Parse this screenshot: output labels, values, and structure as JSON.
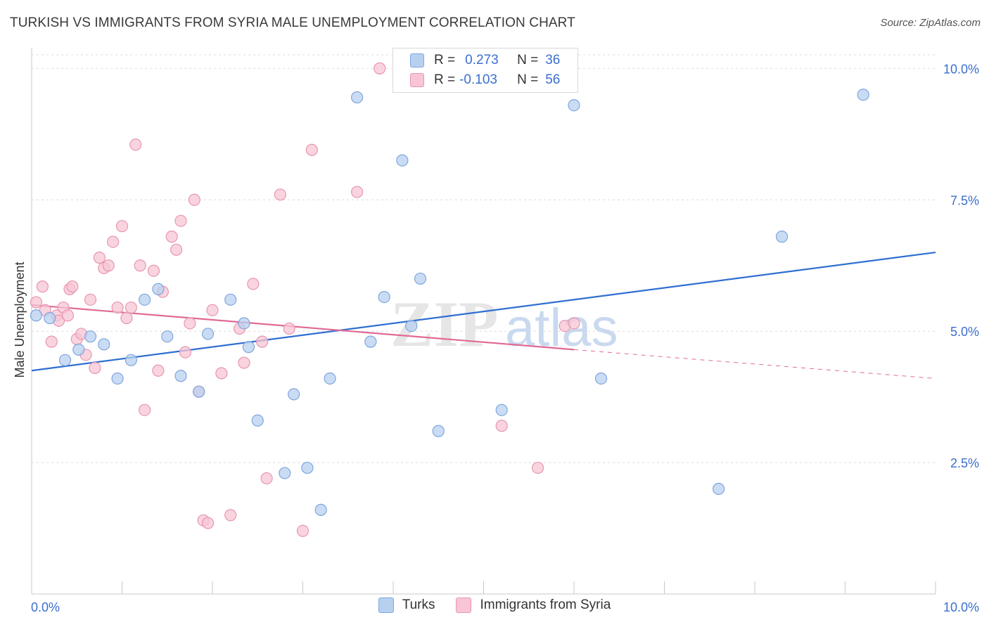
{
  "title": "TURKISH VS IMMIGRANTS FROM SYRIA MALE UNEMPLOYMENT CORRELATION CHART",
  "source": "Source: ZipAtlas.com",
  "watermark": {
    "zip": "ZIP",
    "atlas": "atlas"
  },
  "legend": {
    "r_label": "R =",
    "n_label": "N =",
    "turks": {
      "r": "0.273",
      "n": "36"
    },
    "syria": {
      "r": "-0.103",
      "n": "56"
    }
  },
  "colors": {
    "turks_fill": "#b8d0f0",
    "turks_stroke": "#7ea6de",
    "turks_line": "#2f6fd1",
    "syria_fill": "#f7c5d4",
    "syria_stroke": "#e896b0",
    "syria_line": "#e06a96",
    "tick_label": "#3b6fcf"
  },
  "chart_data": {
    "type": "scatter",
    "title": "TURKISH VS IMMIGRANTS FROM SYRIA MALE UNEMPLOYMENT CORRELATION CHART",
    "xlabel": "",
    "ylabel": "Male Unemployment",
    "xlim": [
      0,
      10
    ],
    "ylim": [
      0,
      10.5
    ],
    "x_tick_labels": [
      "0.0%",
      "10.0%"
    ],
    "y_ticks": [
      2.5,
      5.0,
      7.5,
      10.0
    ],
    "y_tick_labels": [
      "2.5%",
      "5.0%",
      "7.5%",
      "10.0%"
    ],
    "grid": true,
    "legend_position": "bottom",
    "series": [
      {
        "name": "Turks",
        "r": 0.273,
        "n": 36,
        "trend": {
          "x": [
            0,
            10
          ],
          "y": [
            4.25,
            6.5
          ]
        },
        "points": [
          [
            0.05,
            5.3
          ],
          [
            0.2,
            5.25
          ],
          [
            0.37,
            4.45
          ],
          [
            0.52,
            4.65
          ],
          [
            0.65,
            4.9
          ],
          [
            0.8,
            4.75
          ],
          [
            0.95,
            4.1
          ],
          [
            1.1,
            4.45
          ],
          [
            1.25,
            5.6
          ],
          [
            1.4,
            5.8
          ],
          [
            1.5,
            4.9
          ],
          [
            1.65,
            4.15
          ],
          [
            1.85,
            3.85
          ],
          [
            1.95,
            4.95
          ],
          [
            2.2,
            5.6
          ],
          [
            2.35,
            5.15
          ],
          [
            2.4,
            4.7
          ],
          [
            2.5,
            3.3
          ],
          [
            2.8,
            2.3
          ],
          [
            2.9,
            3.8
          ],
          [
            3.05,
            2.4
          ],
          [
            3.2,
            1.6
          ],
          [
            3.3,
            4.1
          ],
          [
            3.6,
            9.45
          ],
          [
            3.75,
            4.8
          ],
          [
            3.9,
            5.65
          ],
          [
            4.1,
            8.25
          ],
          [
            4.2,
            5.1
          ],
          [
            4.3,
            6.0
          ],
          [
            4.5,
            3.1
          ],
          [
            5.2,
            3.5
          ],
          [
            6.0,
            9.3
          ],
          [
            6.3,
            4.1
          ],
          [
            7.6,
            2.0
          ],
          [
            8.3,
            6.8
          ],
          [
            9.2,
            9.5
          ]
        ]
      },
      {
        "name": "Immigrants from Syria",
        "r": -0.103,
        "n": 56,
        "trend": {
          "x": [
            0,
            6.0
          ],
          "y": [
            5.5,
            4.65
          ]
        },
        "trend_dashed": {
          "x": [
            6.0,
            10
          ],
          "y": [
            4.65,
            4.1
          ]
        },
        "points": [
          [
            0.05,
            5.55
          ],
          [
            0.12,
            5.85
          ],
          [
            0.15,
            5.4
          ],
          [
            0.22,
            4.8
          ],
          [
            0.28,
            5.3
          ],
          [
            0.3,
            5.2
          ],
          [
            0.35,
            5.45
          ],
          [
            0.42,
            5.8
          ],
          [
            0.45,
            5.85
          ],
          [
            0.5,
            4.85
          ],
          [
            0.55,
            4.95
          ],
          [
            0.6,
            4.55
          ],
          [
            0.65,
            5.6
          ],
          [
            0.7,
            4.3
          ],
          [
            0.75,
            6.4
          ],
          [
            0.8,
            6.2
          ],
          [
            0.85,
            6.25
          ],
          [
            0.9,
            6.7
          ],
          [
            0.95,
            5.45
          ],
          [
            1.0,
            7.0
          ],
          [
            1.05,
            5.25
          ],
          [
            1.1,
            5.45
          ],
          [
            1.15,
            8.55
          ],
          [
            1.2,
            6.25
          ],
          [
            1.25,
            3.5
          ],
          [
            1.35,
            6.15
          ],
          [
            1.4,
            4.25
          ],
          [
            1.45,
            5.75
          ],
          [
            1.55,
            6.8
          ],
          [
            1.6,
            6.55
          ],
          [
            1.65,
            7.1
          ],
          [
            1.7,
            4.6
          ],
          [
            1.75,
            5.15
          ],
          [
            1.8,
            7.5
          ],
          [
            1.85,
            3.85
          ],
          [
            1.9,
            1.4
          ],
          [
            1.95,
            1.35
          ],
          [
            2.0,
            5.4
          ],
          [
            2.1,
            4.2
          ],
          [
            2.2,
            1.5
          ],
          [
            2.3,
            5.05
          ],
          [
            2.35,
            4.4
          ],
          [
            2.45,
            5.9
          ],
          [
            2.55,
            4.8
          ],
          [
            2.6,
            2.2
          ],
          [
            2.75,
            7.6
          ],
          [
            2.85,
            5.05
          ],
          [
            3.0,
            1.2
          ],
          [
            3.1,
            8.45
          ],
          [
            3.6,
            7.65
          ],
          [
            3.85,
            10.0
          ],
          [
            5.2,
            3.2
          ],
          [
            5.6,
            2.4
          ],
          [
            5.9,
            5.1
          ],
          [
            6.0,
            5.15
          ],
          [
            0.4,
            5.3
          ]
        ]
      }
    ]
  },
  "bottom_legend": [
    "Turks",
    "Immigrants from Syria"
  ]
}
